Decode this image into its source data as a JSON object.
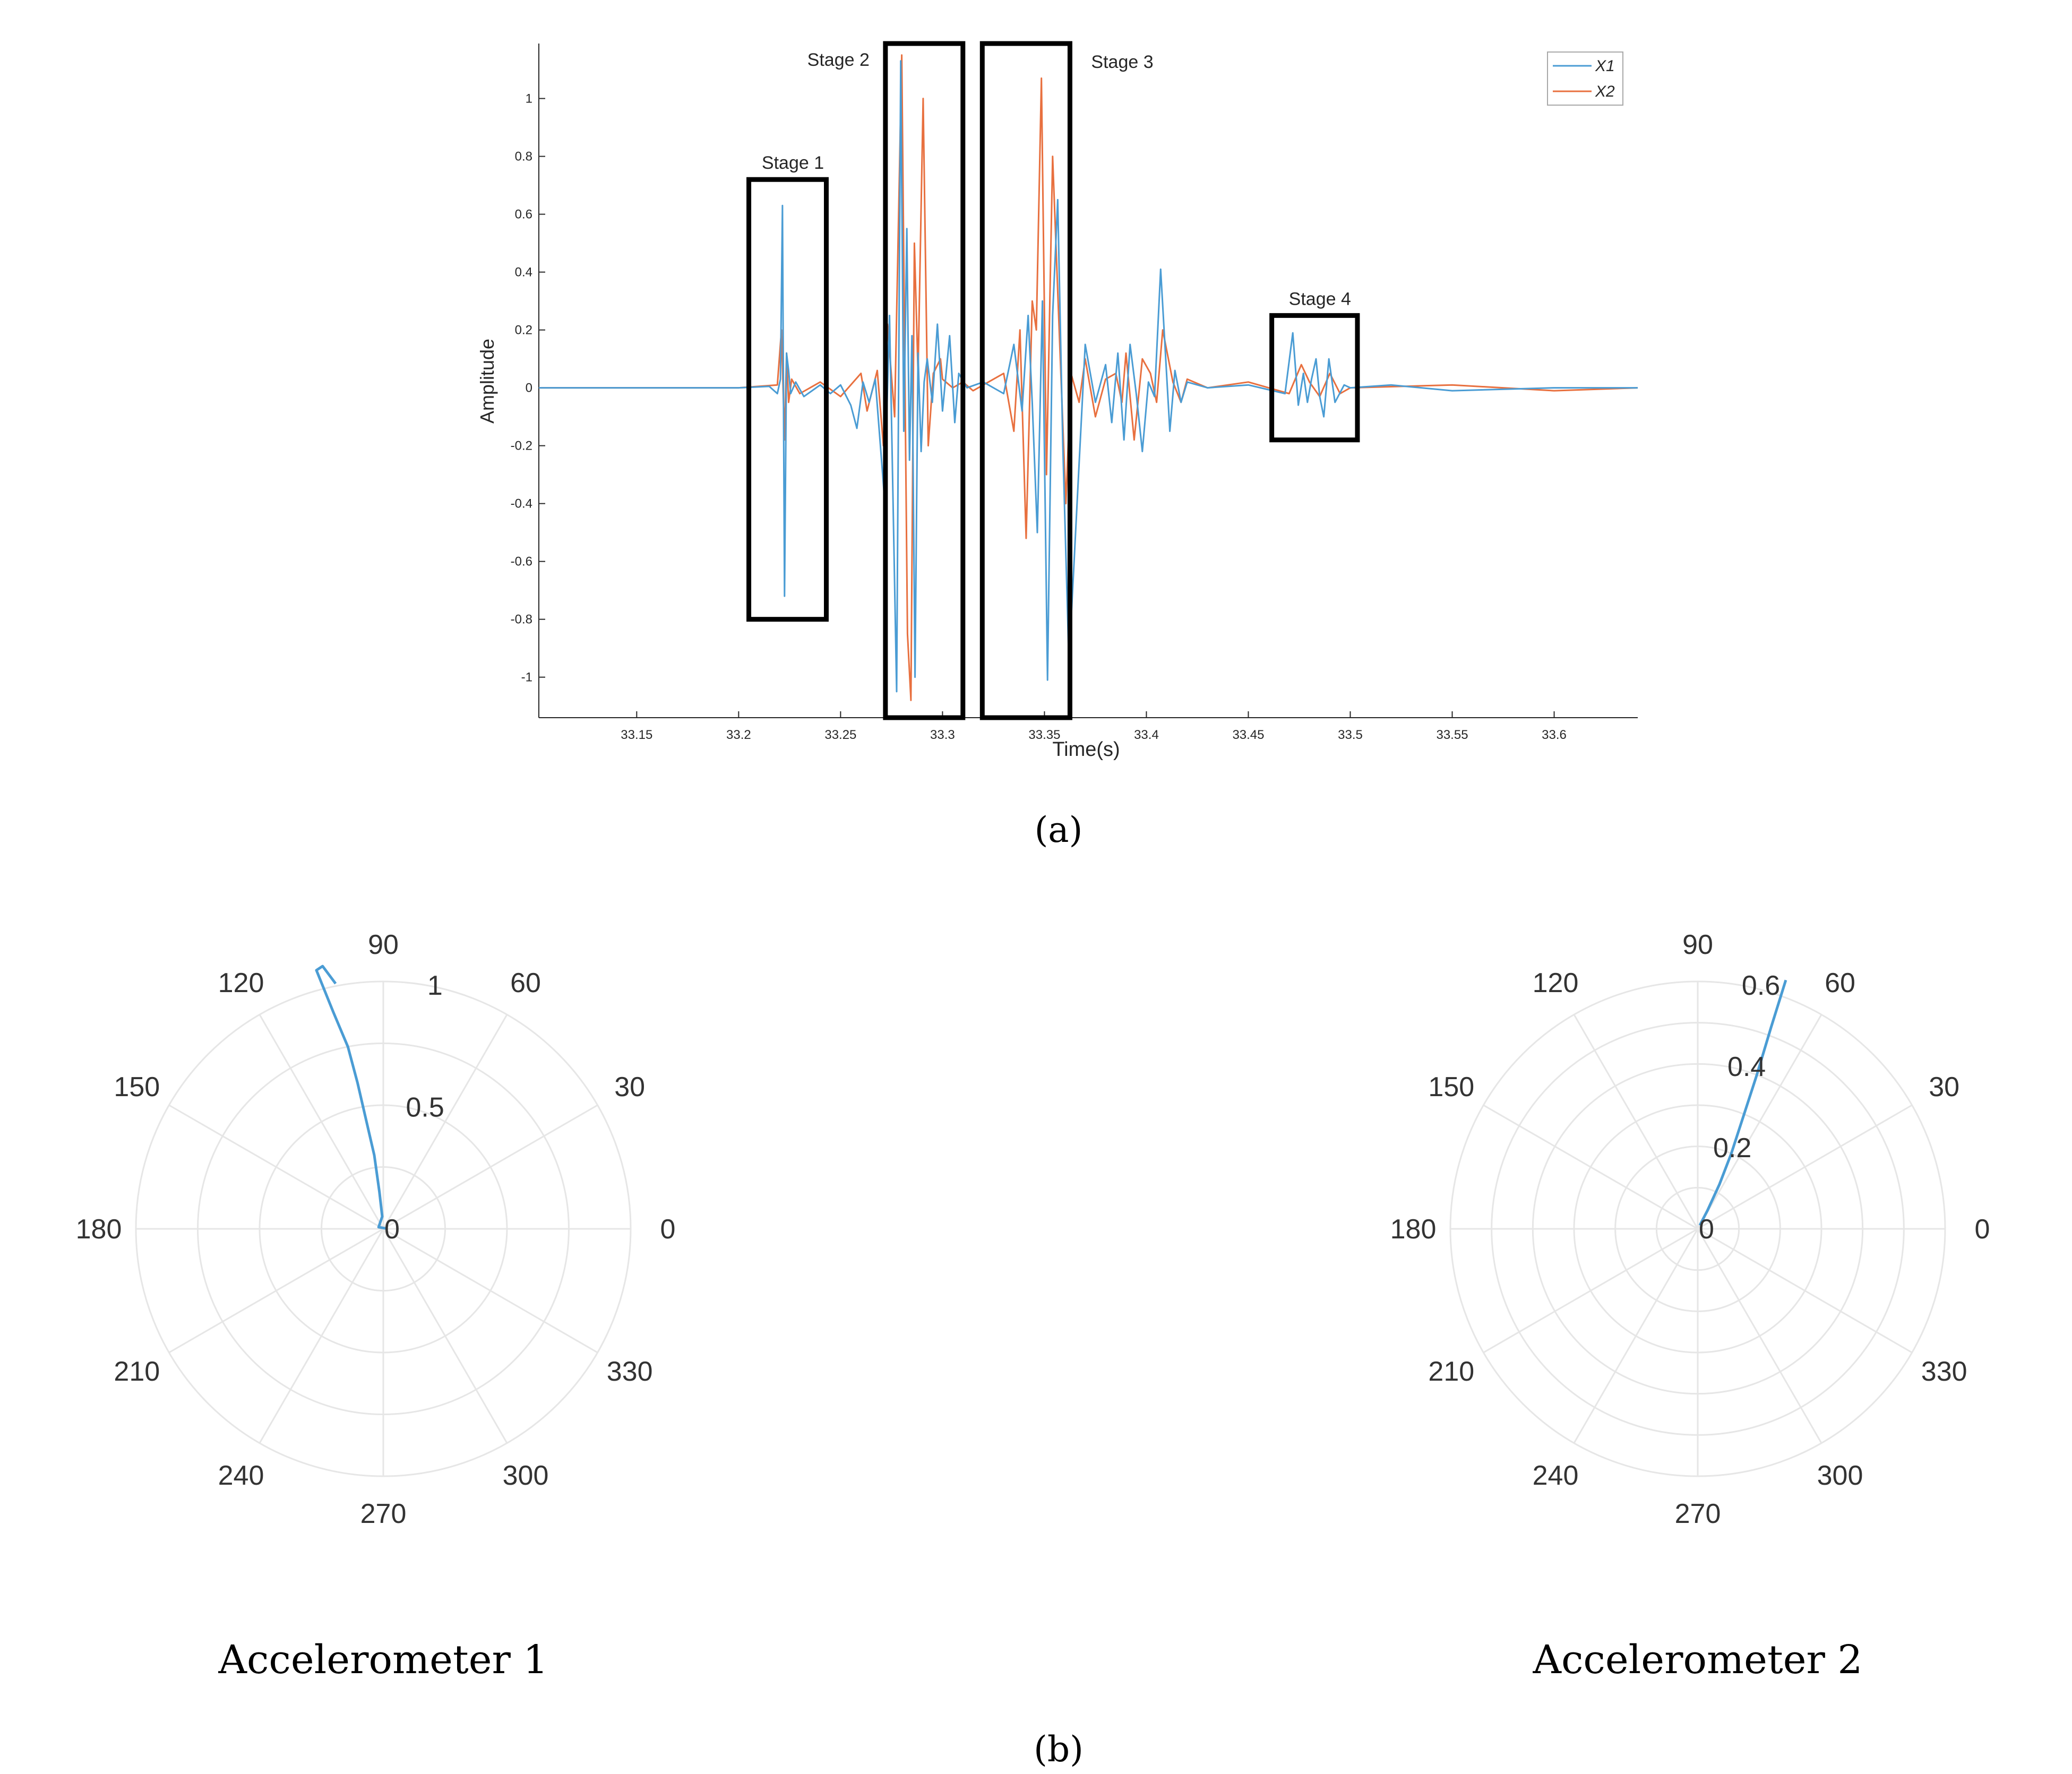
{
  "panel_labels": {
    "a": "(a)",
    "b": "(b)"
  },
  "colors": {
    "x1": "#4a9cd4",
    "x2": "#e8703f",
    "box": "#000000",
    "polar_grid": "#e6e6e6"
  },
  "chart_data": [
    {
      "type": "line",
      "title": "",
      "xlabel": "Time(s)",
      "ylabel": "Amplitude",
      "xlim": [
        33.102,
        33.641
      ],
      "ylim": [
        -1.14,
        1.19
      ],
      "x_ticks": [
        33.15,
        33.2,
        33.25,
        33.3,
        33.35,
        33.4,
        33.45,
        33.5,
        33.55,
        33.6
      ],
      "x_tick_labels": [
        "33.15",
        "33.2",
        "33.25",
        "33.3",
        "33.35",
        "33.4",
        "33.45",
        "33.5",
        "33.55",
        "33.6"
      ],
      "y_ticks": [
        -1,
        -0.8,
        -0.6,
        -0.4,
        -0.2,
        0,
        0.2,
        0.4,
        0.6,
        0.8,
        1
      ],
      "y_tick_labels": [
        "-1",
        "-0.8",
        "-0.6",
        "-0.4",
        "-0.2",
        "0",
        "0.2",
        "0.4",
        "0.6",
        "0.8",
        "1"
      ],
      "grid": false,
      "legend": {
        "position": "top-right",
        "entries": [
          "X1",
          "X2"
        ]
      },
      "series": [
        {
          "name": "X1",
          "color": "#4a9cd4",
          "x": [
            33.102,
            33.15,
            33.2,
            33.215,
            33.219,
            33.2205,
            33.2215,
            33.2225,
            33.2235,
            33.2245,
            33.2255,
            33.228,
            33.232,
            33.24,
            33.245,
            33.25,
            33.255,
            33.258,
            33.261,
            33.264,
            33.267,
            33.2715,
            33.274,
            33.2775,
            33.2795,
            33.281,
            33.2825,
            33.2838,
            33.285,
            33.2865,
            33.288,
            33.2895,
            33.291,
            33.2925,
            33.295,
            33.2975,
            33.3,
            33.3035,
            33.306,
            33.308,
            33.312,
            33.32,
            33.33,
            33.335,
            33.339,
            33.342,
            33.344,
            33.3465,
            33.349,
            33.3515,
            33.354,
            33.3565,
            33.359,
            33.362,
            33.37,
            33.375,
            33.38,
            33.383,
            33.386,
            33.389,
            33.392,
            33.395,
            33.398,
            33.401,
            33.404,
            33.407,
            33.4115,
            33.414,
            33.417,
            33.42,
            33.43,
            33.45,
            33.468,
            33.4718,
            33.4745,
            33.477,
            33.479,
            33.481,
            33.4832,
            33.485,
            33.487,
            33.4895,
            33.4925,
            33.497,
            33.5,
            33.52,
            33.55,
            33.6,
            33.641
          ],
          "y": [
            0,
            0,
            0,
            0.005,
            -0.02,
            0.03,
            0.63,
            -0.72,
            0.12,
            0.06,
            -0.02,
            0.02,
            -0.03,
            0.01,
            -0.02,
            0.01,
            -0.06,
            -0.14,
            0.02,
            -0.05,
            0.03,
            -0.38,
            0.25,
            -1.05,
            1.13,
            -0.15,
            0.55,
            -0.25,
            0.18,
            -1.0,
            0.12,
            -0.22,
            0.02,
            0.1,
            -0.05,
            0.22,
            -0.08,
            0.18,
            -0.12,
            0.05,
            0.0,
            0.02,
            -0.02,
            0.15,
            -0.08,
            0.25,
            -0.05,
            -0.5,
            0.3,
            -1.01,
            0.25,
            0.65,
            -0.2,
            -0.95,
            0.15,
            -0.05,
            0.08,
            -0.12,
            0.12,
            -0.18,
            0.15,
            -0.02,
            -0.22,
            0.02,
            -0.03,
            0.41,
            -0.15,
            0.06,
            -0.05,
            0.02,
            0.0,
            0.01,
            -0.02,
            0.19,
            -0.06,
            0.05,
            -0.05,
            0.03,
            0.1,
            -0.03,
            -0.1,
            0.1,
            -0.05,
            0.01,
            0.0,
            0.01,
            -0.01,
            0.0,
            0.0
          ]
        },
        {
          "name": "X2",
          "color": "#e8703f",
          "x": [
            33.102,
            33.2,
            33.219,
            33.221,
            33.2225,
            33.2235,
            33.2245,
            33.226,
            33.23,
            33.24,
            33.25,
            33.26,
            33.263,
            33.268,
            33.271,
            33.273,
            33.2765,
            33.28,
            33.2828,
            33.2845,
            33.2862,
            33.288,
            33.2905,
            33.293,
            33.2955,
            33.299,
            33.3,
            33.305,
            33.31,
            33.315,
            33.32,
            33.33,
            33.335,
            33.338,
            33.341,
            33.344,
            33.346,
            33.3485,
            33.351,
            33.354,
            33.3575,
            33.3605,
            33.363,
            33.367,
            33.37,
            33.375,
            33.38,
            33.385,
            33.388,
            33.39,
            33.394,
            33.398,
            33.402,
            33.405,
            33.408,
            33.413,
            33.417,
            33.42,
            33.43,
            33.45,
            33.47,
            33.476,
            33.48,
            33.485,
            33.49,
            33.495,
            33.5,
            33.55,
            33.6,
            33.641
          ],
          "y": [
            0,
            0,
            0.01,
            0.2,
            -0.18,
            0.12,
            -0.05,
            0.03,
            -0.02,
            0.02,
            -0.03,
            0.05,
            -0.08,
            0.06,
            -0.2,
            0.22,
            -0.1,
            1.15,
            -0.85,
            -1.08,
            0.5,
            0.05,
            1.0,
            -0.2,
            0.05,
            0.1,
            0.03,
            0.0,
            0.02,
            -0.01,
            0.01,
            0.05,
            -0.15,
            0.2,
            -0.52,
            0.3,
            0.2,
            1.07,
            -0.3,
            0.8,
            0.15,
            -0.4,
            0.05,
            -0.05,
            0.1,
            -0.1,
            0.03,
            0.05,
            -0.05,
            0.12,
            -0.18,
            0.1,
            0.05,
            -0.05,
            0.2,
            0.02,
            -0.05,
            0.03,
            0.0,
            0.02,
            -0.02,
            0.08,
            0.02,
            -0.03,
            0.05,
            -0.02,
            0.0,
            0.01,
            -0.01,
            0.0
          ]
        }
      ],
      "annotations": [
        {
          "label": "Stage 1",
          "x0": 33.205,
          "x1": 33.243,
          "y0": -0.8,
          "y1": 0.72
        },
        {
          "label": "Stage 2",
          "x0": 33.272,
          "x1": 33.31,
          "y0": -1.14,
          "y1": 1.19
        },
        {
          "label": "Stage 3",
          "x0": 33.3195,
          "x1": 33.3625,
          "y0": -1.14,
          "y1": 1.19
        },
        {
          "label": "Stage 4",
          "x0": 33.4615,
          "x1": 33.5035,
          "y0": -0.18,
          "y1": 0.25
        }
      ]
    },
    {
      "type": "polar",
      "title": "Accelerometer 1",
      "r_max": 1.0,
      "r_ticks": [
        0,
        0.5,
        1
      ],
      "r_tick_labels": [
        "0",
        "0.5",
        "1"
      ],
      "theta_tick_labels": [
        "0",
        "30",
        "60",
        "90",
        "120",
        "150",
        "180",
        "210",
        "240",
        "270",
        "300",
        "330"
      ],
      "series": [
        {
          "name": "",
          "color": "#4a9cd4",
          "theta_deg": [
            10,
            160,
            95,
            96,
            97,
            99,
            100,
            101,
            103,
            104.5,
            103,
            101
          ],
          "r": [
            0.01,
            0.02,
            0.05,
            0.15,
            0.3,
            0.45,
            0.6,
            0.75,
            0.9,
            1.08,
            1.09,
            1.01
          ]
        }
      ]
    },
    {
      "type": "polar",
      "title": "Accelerometer 2",
      "r_max": 0.6,
      "r_ticks": [
        0,
        0.2,
        0.4,
        0.6
      ],
      "r_tick_labels": [
        "0",
        "0.2",
        "0.4",
        "0.6"
      ],
      "theta_tick_labels": [
        "0",
        "30",
        "60",
        "90",
        "120",
        "150",
        "180",
        "210",
        "240",
        "270",
        "300",
        "330"
      ],
      "series": [
        {
          "name": "",
          "color": "#4a9cd4",
          "theta_deg": [
            60,
            62,
            64,
            66,
            68,
            69,
            70,
            70.5
          ],
          "r": [
            0.01,
            0.05,
            0.12,
            0.2,
            0.3,
            0.4,
            0.52,
            0.64
          ]
        }
      ]
    }
  ]
}
